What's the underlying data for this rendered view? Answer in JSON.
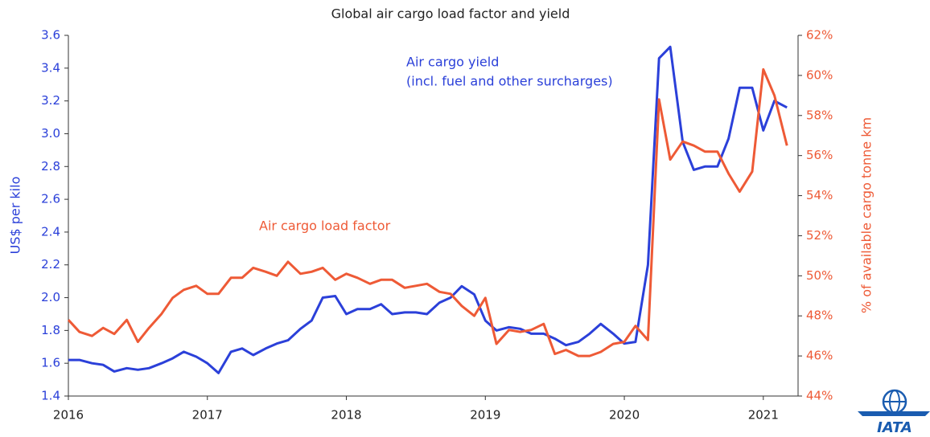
{
  "chart_data": {
    "type": "line",
    "title": "Global air cargo load factor and yield",
    "y_label": "US$ per kilo",
    "y2_label": "% of available cargo tonne km",
    "annotations": [
      "Air cargo yield",
      "(incl. fuel and other surcharges)",
      "Air cargo load factor"
    ],
    "logo": "IATA",
    "x": [
      2016,
      2016.08,
      2016.17,
      2016.25,
      2016.33,
      2016.42,
      2016.5,
      2016.58,
      2016.67,
      2016.75,
      2016.83,
      2016.92,
      2017,
      2017.08,
      2017.17,
      2017.25,
      2017.33,
      2017.42,
      2017.5,
      2017.58,
      2017.67,
      2017.75,
      2017.83,
      2017.92,
      2018,
      2018.08,
      2018.17,
      2018.25,
      2018.33,
      2018.42,
      2018.5,
      2018.58,
      2018.67,
      2018.75,
      2018.83,
      2018.92,
      2019,
      2019.08,
      2019.17,
      2019.25,
      2019.33,
      2019.42,
      2019.5,
      2019.58,
      2019.67,
      2019.75,
      2019.83,
      2019.92,
      2020,
      2020.08,
      2020.17,
      2020.25,
      2020.33,
      2020.42,
      2020.5,
      2020.58,
      2020.67,
      2020.75,
      2020.83,
      2020.92,
      2021,
      2021.08,
      2021.17
    ],
    "series": [
      {
        "name": "Air cargo yield",
        "color": "#2b40d9",
        "axis": "y",
        "values": [
          1.62,
          1.62,
          1.6,
          1.59,
          1.55,
          1.57,
          1.56,
          1.57,
          1.6,
          1.63,
          1.67,
          1.64,
          1.6,
          1.54,
          1.67,
          1.69,
          1.65,
          1.69,
          1.72,
          1.74,
          1.81,
          1.86,
          2.0,
          2.01,
          1.9,
          1.93,
          1.93,
          1.96,
          1.9,
          1.91,
          1.91,
          1.9,
          1.97,
          2.0,
          2.07,
          2.02,
          1.86,
          1.8,
          1.82,
          1.81,
          1.78,
          1.78,
          1.75,
          1.71,
          1.73,
          1.78,
          1.84,
          1.78,
          1.72,
          1.73,
          2.2,
          3.46,
          3.53,
          2.95,
          2.78,
          2.8,
          2.8,
          2.97,
          3.28,
          3.28,
          3.02,
          3.2,
          3.16
        ]
      },
      {
        "name": "Air cargo load factor",
        "color": "#ee5a36",
        "axis": "y2",
        "values": [
          47.8,
          47.2,
          47.0,
          47.4,
          47.1,
          47.8,
          46.7,
          47.4,
          48.1,
          48.9,
          49.3,
          49.5,
          49.1,
          49.1,
          49.9,
          49.9,
          50.4,
          50.2,
          50.0,
          50.7,
          50.1,
          50.2,
          50.4,
          49.8,
          50.1,
          49.9,
          49.6,
          49.8,
          49.8,
          49.4,
          49.5,
          49.6,
          49.2,
          49.1,
          48.5,
          48.0,
          48.9,
          46.6,
          47.3,
          47.2,
          47.3,
          47.6,
          46.1,
          46.3,
          46.0,
          46.0,
          46.2,
          46.6,
          46.7,
          47.5,
          46.8,
          58.8,
          55.8,
          56.7,
          56.5,
          56.2,
          56.2,
          55.1,
          54.2,
          55.2,
          60.3,
          59.0,
          56.5
        ]
      }
    ],
    "xlim": [
      2016,
      2021.25
    ],
    "xticks": [
      2016,
      2017,
      2018,
      2019,
      2020,
      2021
    ],
    "ylim": [
      1.4,
      3.6
    ],
    "yticks": [
      1.4,
      1.6,
      1.8,
      {
        "value": 2,
        "label": "2.0"
      },
      2.2,
      2.4,
      2.6,
      2.8,
      {
        "value": 3,
        "label": "3.0"
      },
      3.2,
      3.4,
      3.6
    ],
    "y2lim": [
      44,
      62
    ],
    "y2ticks": [
      {
        "value": 44,
        "label": "44%"
      },
      {
        "value": 46,
        "label": "46%"
      },
      {
        "value": 48,
        "label": "48%"
      },
      {
        "value": 50,
        "label": "50%"
      },
      {
        "value": 52,
        "label": "52%"
      },
      {
        "value": 54,
        "label": "54%"
      },
      {
        "value": 56,
        "label": "56%"
      },
      {
        "value": 58,
        "label": "58%"
      },
      {
        "value": 60,
        "label": "60%"
      },
      {
        "value": 62,
        "label": "62%"
      }
    ],
    "grid": false
  }
}
